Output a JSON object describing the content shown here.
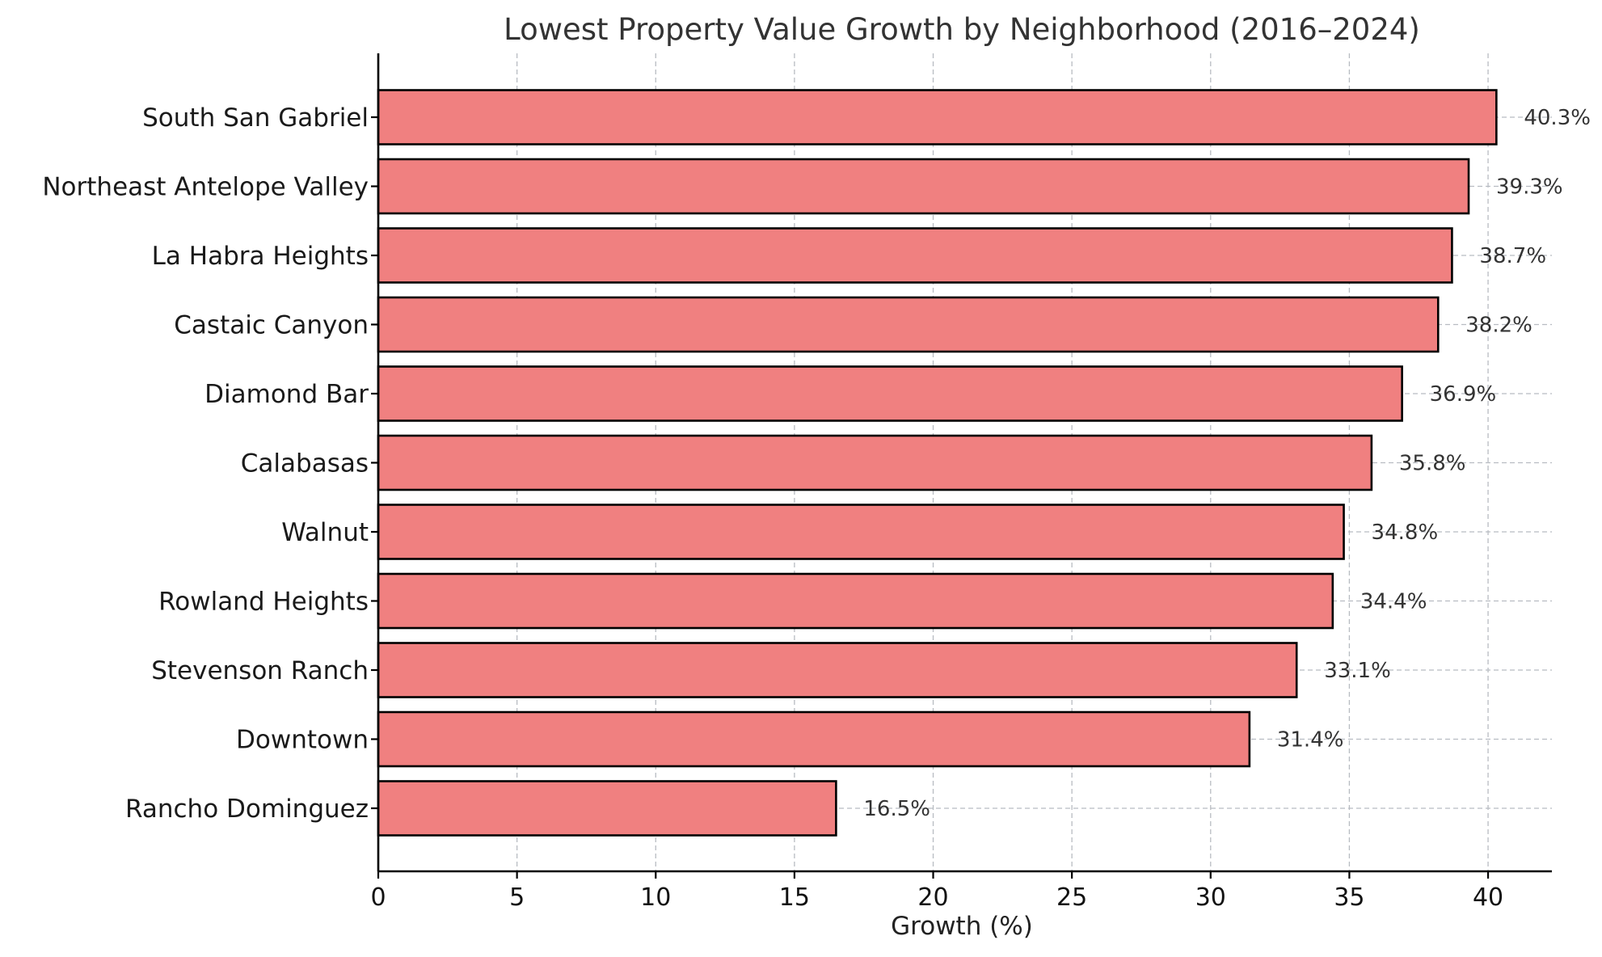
{
  "chart_data": {
    "type": "bar",
    "orientation": "horizontal",
    "title": "Lowest Property Value Growth by Neighborhood (2016–2024)",
    "xlabel": "Growth (%)",
    "ylabel": "",
    "categories": [
      "South San Gabriel",
      "Northeast Antelope Valley",
      "La Habra Heights",
      "Castaic Canyon",
      "Diamond Bar",
      "Calabasas",
      "Walnut",
      "Rowland Heights",
      "Stevenson Ranch",
      "Downtown",
      "Rancho Dominguez"
    ],
    "values": [
      40.3,
      39.3,
      38.7,
      38.2,
      36.9,
      35.8,
      34.8,
      34.4,
      33.1,
      31.4,
      16.5
    ],
    "data_labels": [
      "40.3%",
      "39.3%",
      "38.7%",
      "38.2%",
      "36.9%",
      "35.8%",
      "34.8%",
      "34.4%",
      "33.1%",
      "31.4%",
      "16.5%"
    ],
    "xlim": [
      0,
      42.3
    ],
    "xticks": [
      0,
      5,
      10,
      15,
      20,
      25,
      30,
      35,
      40
    ],
    "grid": true,
    "legend": "none",
    "colors": {
      "bar_fill": "#f08080",
      "bar_edge": "#000000",
      "grid": "#b8bcc2"
    }
  }
}
